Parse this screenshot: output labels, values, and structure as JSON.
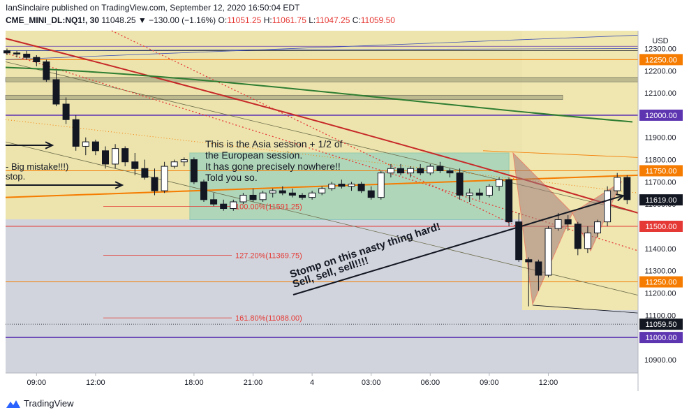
{
  "header": {
    "publisher_line": "IanSinclaire published on TradingView.com, September 12, 2020 16:50:04 EDT",
    "symbol": "CME_MINI_DL:NQ1!, 30",
    "last": "11048.25",
    "change": "▼ −130.00 (−1.16%)",
    "o_label": "O:",
    "o_val": "11051.25",
    "h_label": "H:",
    "h_val": "11061.75",
    "l_label": "L:",
    "l_val": "11047.25",
    "c_label": "C:",
    "c_val": "11059.50"
  },
  "footer": {
    "brand": "TradingView"
  },
  "colors": {
    "up": "#ffffff",
    "down": "#131722",
    "red": "#e53935",
    "purple": "#5e35b1",
    "green": "#2e7d32",
    "orange": "#f57c00",
    "darkred": "#c62828",
    "teal_box": "#80cbc4"
  },
  "chart_data": {
    "type": "candlestick",
    "currency": "USD",
    "ylim": [
      10840,
      12380
    ],
    "y_ticks": [
      10900,
      11000,
      11100,
      11200,
      11300,
      11400,
      11500,
      11600,
      11700,
      11800,
      11900,
      12000,
      12100,
      12200,
      12300
    ],
    "y_tick_labels": [
      "10900.00",
      "11000.00",
      "11100.00",
      "11200.00",
      "11300.00",
      "11400.00",
      "11500.00",
      "11600.00",
      "11700.00",
      "11800.00",
      "11900.00",
      "12000.00",
      "12100.00",
      "12200.00",
      "12300.00"
    ],
    "x_ticks": [
      {
        "label": "09:00",
        "i": 3
      },
      {
        "label": "12:00",
        "i": 9
      },
      {
        "label": "18:00",
        "i": 19
      },
      {
        "label": "21:00",
        "i": 25
      },
      {
        "label": "4",
        "i": 31
      },
      {
        "label": "03:00",
        "i": 37
      },
      {
        "label": "06:00",
        "i": 43
      },
      {
        "label": "09:00",
        "i": 49
      },
      {
        "label": "12:00",
        "i": 55
      }
    ],
    "candles": [
      {
        "o": 12290,
        "h": 12300,
        "l": 12270,
        "c": 12280
      },
      {
        "o": 12280,
        "h": 12290,
        "l": 12260,
        "c": 12275
      },
      {
        "o": 12275,
        "h": 12290,
        "l": 12250,
        "c": 12260
      },
      {
        "o": 12260,
        "h": 12270,
        "l": 12220,
        "c": 12240
      },
      {
        "o": 12240,
        "h": 12250,
        "l": 12150,
        "c": 12160
      },
      {
        "o": 12160,
        "h": 12200,
        "l": 12040,
        "c": 12050
      },
      {
        "o": 12050,
        "h": 12080,
        "l": 11960,
        "c": 11980
      },
      {
        "o": 11980,
        "h": 12000,
        "l": 11840,
        "c": 11860
      },
      {
        "o": 11860,
        "h": 11900,
        "l": 11820,
        "c": 11880
      },
      {
        "o": 11880,
        "h": 11890,
        "l": 11820,
        "c": 11840
      },
      {
        "o": 11840,
        "h": 11860,
        "l": 11760,
        "c": 11780
      },
      {
        "o": 11780,
        "h": 11870,
        "l": 11760,
        "c": 11850
      },
      {
        "o": 11850,
        "h": 11860,
        "l": 11770,
        "c": 11790
      },
      {
        "o": 11790,
        "h": 11830,
        "l": 11730,
        "c": 11760
      },
      {
        "o": 11760,
        "h": 11800,
        "l": 11710,
        "c": 11720
      },
      {
        "o": 11720,
        "h": 11760,
        "l": 11640,
        "c": 11660
      },
      {
        "o": 11660,
        "h": 11790,
        "l": 11650,
        "c": 11770
      },
      {
        "o": 11770,
        "h": 11800,
        "l": 11760,
        "c": 11790
      },
      {
        "o": 11790,
        "h": 11810,
        "l": 11770,
        "c": 11800
      },
      {
        "o": 11800,
        "h": 11810,
        "l": 11690,
        "c": 11700
      },
      {
        "o": 11700,
        "h": 11710,
        "l": 11610,
        "c": 11620
      },
      {
        "o": 11620,
        "h": 11650,
        "l": 11590,
        "c": 11600
      },
      {
        "o": 11600,
        "h": 11620,
        "l": 11570,
        "c": 11580
      },
      {
        "o": 11580,
        "h": 11620,
        "l": 11570,
        "c": 11610
      },
      {
        "o": 11610,
        "h": 11650,
        "l": 11600,
        "c": 11640
      },
      {
        "o": 11640,
        "h": 11670,
        "l": 11610,
        "c": 11620
      },
      {
        "o": 11620,
        "h": 11660,
        "l": 11610,
        "c": 11650
      },
      {
        "o": 11650,
        "h": 11670,
        "l": 11630,
        "c": 11660
      },
      {
        "o": 11660,
        "h": 11680,
        "l": 11640,
        "c": 11650
      },
      {
        "o": 11650,
        "h": 11670,
        "l": 11630,
        "c": 11640
      },
      {
        "o": 11640,
        "h": 11650,
        "l": 11620,
        "c": 11630
      },
      {
        "o": 11630,
        "h": 11660,
        "l": 11620,
        "c": 11650
      },
      {
        "o": 11650,
        "h": 11680,
        "l": 11640,
        "c": 11670
      },
      {
        "o": 11670,
        "h": 11700,
        "l": 11660,
        "c": 11690
      },
      {
        "o": 11690,
        "h": 11710,
        "l": 11670,
        "c": 11680
      },
      {
        "o": 11680,
        "h": 11700,
        "l": 11660,
        "c": 11690
      },
      {
        "o": 11690,
        "h": 11700,
        "l": 11650,
        "c": 11660
      },
      {
        "o": 11660,
        "h": 11680,
        "l": 11620,
        "c": 11630
      },
      {
        "o": 11630,
        "h": 11750,
        "l": 11620,
        "c": 11740
      },
      {
        "o": 11740,
        "h": 11780,
        "l": 11720,
        "c": 11760
      },
      {
        "o": 11760,
        "h": 11780,
        "l": 11730,
        "c": 11740
      },
      {
        "o": 11740,
        "h": 11770,
        "l": 11720,
        "c": 11760
      },
      {
        "o": 11760,
        "h": 11780,
        "l": 11730,
        "c": 11740
      },
      {
        "o": 11740,
        "h": 11780,
        "l": 11730,
        "c": 11770
      },
      {
        "o": 11770,
        "h": 11790,
        "l": 11740,
        "c": 11750
      },
      {
        "o": 11750,
        "h": 11760,
        "l": 11720,
        "c": 11740
      },
      {
        "o": 11740,
        "h": 11760,
        "l": 11620,
        "c": 11640
      },
      {
        "o": 11640,
        "h": 11670,
        "l": 11610,
        "c": 11650
      },
      {
        "o": 11650,
        "h": 11670,
        "l": 11620,
        "c": 11640
      },
      {
        "o": 11640,
        "h": 11690,
        "l": 11630,
        "c": 11680
      },
      {
        "o": 11680,
        "h": 11720,
        "l": 11660,
        "c": 11710
      },
      {
        "o": 11710,
        "h": 11720,
        "l": 11500,
        "c": 11520
      },
      {
        "o": 11520,
        "h": 11560,
        "l": 11340,
        "c": 11350
      },
      {
        "o": 11350,
        "h": 11360,
        "l": 11140,
        "c": 11340
      },
      {
        "o": 11340,
        "h": 11350,
        "l": 11210,
        "c": 11280
      },
      {
        "o": 11280,
        "h": 11500,
        "l": 11270,
        "c": 11490
      },
      {
        "o": 11490,
        "h": 11560,
        "l": 11480,
        "c": 11530
      },
      {
        "o": 11530,
        "h": 11550,
        "l": 11480,
        "c": 11510
      },
      {
        "o": 11510,
        "h": 11520,
        "l": 11370,
        "c": 11400
      },
      {
        "o": 11400,
        "h": 11500,
        "l": 11380,
        "c": 11470
      },
      {
        "o": 11470,
        "h": 11530,
        "l": 11450,
        "c": 11520
      },
      {
        "o": 11520,
        "h": 11680,
        "l": 11500,
        "c": 11660
      },
      {
        "o": 11660,
        "h": 11740,
        "l": 11640,
        "c": 11720
      },
      {
        "o": 11720,
        "h": 11730,
        "l": 11600,
        "c": 11620
      }
    ],
    "price_labels": [
      {
        "value": 12250,
        "text": "12250.00",
        "color": "#f57c00"
      },
      {
        "value": 12000,
        "text": "12000.00",
        "color": "#5e35b1"
      },
      {
        "value": 11750,
        "text": "11750.00",
        "color": "#f57c00"
      },
      {
        "value": 11619,
        "text": "11619.00",
        "color": "#131722"
      },
      {
        "value": 11500,
        "text": "11500.00",
        "color": "#e53935"
      },
      {
        "value": 11250,
        "text": "11250.00",
        "color": "#f57c00"
      },
      {
        "value": 11059.5,
        "text": "11059.50",
        "color": "#131722"
      },
      {
        "value": 11000,
        "text": "11000.00",
        "color": "#5e35b1"
      }
    ],
    "fib_labels": [
      {
        "value": 11590,
        "text": "100.00%(11591.25)"
      },
      {
        "value": 11370,
        "text": "127.20%(11369.75)"
      },
      {
        "value": 11088,
        "text": "161.80%(11088.00)"
      }
    ],
    "annotations": {
      "asia": [
        "This is the Asia session + 1/2 of",
        "the European session.",
        "It has gone precisely nowhere!!",
        "Told you so."
      ],
      "mistake": "- Big mistake!!!)",
      "stop": "stop.",
      "stomp": [
        "Stomp on this nasty thing hard!",
        "Sell, sell, sell!!!!"
      ]
    }
  }
}
